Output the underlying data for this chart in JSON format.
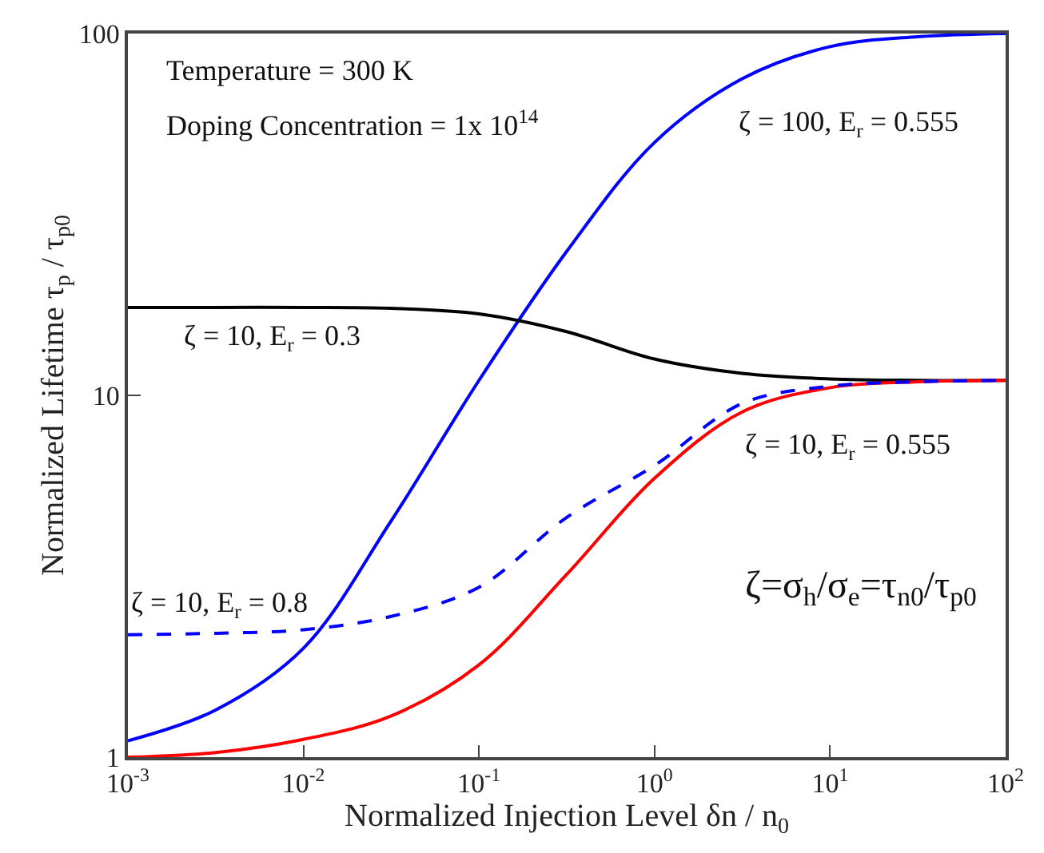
{
  "chart_data": {
    "type": "line",
    "xlabel": "Normalized Injection Level δn / n$_{0}$",
    "ylabel": "Normalized Lifetime τ$_{p}$ / τ$_{p0}$",
    "x": [
      0.001,
      0.00316,
      0.01,
      0.0316,
      0.1,
      0.316,
      1,
      3.16,
      10,
      31.6,
      100
    ],
    "series": [
      {
        "name": "ζ = 100, E$_{r}$ = 0.555",
        "color": "#0000ff",
        "line_style": "solid",
        "values": [
          1.11,
          1.35,
          2.0,
          4.5,
          11,
          25,
          50,
          75,
          92,
          98,
          100
        ]
      },
      {
        "name": "ζ = 10, E$_{r}$ = 0.3",
        "color": "#000000",
        "line_style": "solid",
        "values": [
          17.5,
          17.5,
          17.5,
          17.4,
          16.8,
          15,
          12.6,
          11.5,
          11.1,
          11.0,
          11.0
        ]
      },
      {
        "name": "ζ = 10, E$_{r}$ = 0.555",
        "color": "#ff0000",
        "line_style": "solid",
        "values": [
          1.0,
          1.03,
          1.12,
          1.3,
          1.8,
          3.2,
          5.9,
          9.0,
          10.5,
          10.9,
          11
        ]
      },
      {
        "name": "ζ = 10, E$_{r}$ = 0.8",
        "color": "#0000ff",
        "line_style": "dashed",
        "values": [
          2.18,
          2.2,
          2.25,
          2.45,
          2.95,
          4.6,
          6.4,
          9.5,
          10.6,
          10.9,
          11
        ]
      }
    ],
    "log": "xy",
    "xlim": [
      0.001,
      100
    ],
    "ylim": [
      1,
      100
    ],
    "xticks": [
      {
        "value": 0.001,
        "label": "10$^{-3}$"
      },
      {
        "value": 0.01,
        "label": "10$^{-2}$"
      },
      {
        "value": 0.1,
        "label": "10$^{-1}$"
      },
      {
        "value": 1,
        "label": "10$^{0}$"
      },
      {
        "value": 10,
        "label": "10$^{1}$"
      },
      {
        "value": 100,
        "label": "10$^{2}$"
      }
    ],
    "yticks": [
      1,
      10,
      100
    ],
    "legend": false,
    "marker": "none",
    "annotations": [
      "Temperature = 300 K",
      "Doping Concentration = 1x 10$^{14}$",
      "ζ=σ$_{h}$/σ$_{e}$=τ$_{n0}$/τ$_{p0}$"
    ]
  }
}
